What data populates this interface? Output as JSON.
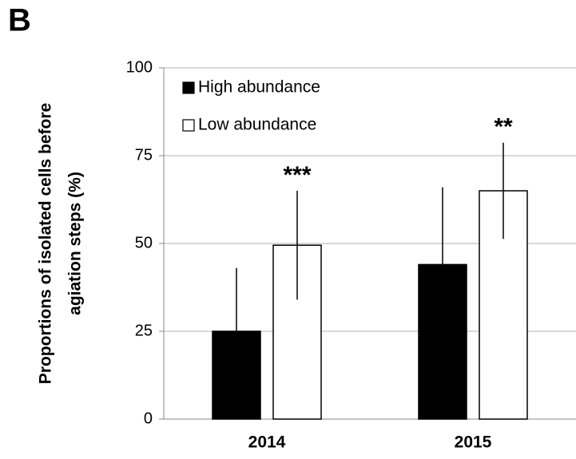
{
  "chart_data": {
    "type": "bar",
    "panel_label": "B",
    "ylabel": [
      "Proportions of isolated cells before",
      "agiation steps (%)"
    ],
    "categories": [
      "2014",
      "2015"
    ],
    "series": [
      {
        "name": "High abundance",
        "color": "#000000",
        "values": [
          25,
          44
        ],
        "errors": [
          18,
          22
        ]
      },
      {
        "name": "Low abundance",
        "color": "#ffffff",
        "values": [
          49.5,
          65
        ],
        "errors": [
          15.5,
          13.7
        ]
      }
    ],
    "annotations": [
      "***",
      "**"
    ],
    "ylim": [
      0,
      100
    ],
    "yticks": [
      0,
      25,
      50,
      75,
      100
    ],
    "grid": true
  }
}
